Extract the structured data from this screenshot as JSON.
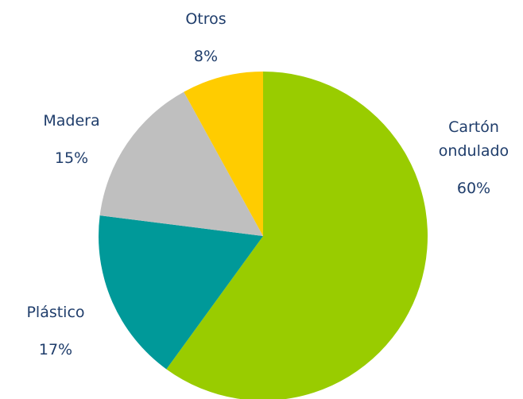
{
  "chart_data": {
    "type": "pie",
    "categories": [
      "Cartón ondulado",
      "Plástico",
      "Madera",
      "Otros"
    ],
    "values": [
      60,
      17,
      15,
      8
    ],
    "value_labels": [
      "60%",
      "17%",
      "15%",
      "8%"
    ],
    "colors": [
      "#99cc00",
      "#009999",
      "#bfbfbf",
      "#ffcc00"
    ]
  }
}
